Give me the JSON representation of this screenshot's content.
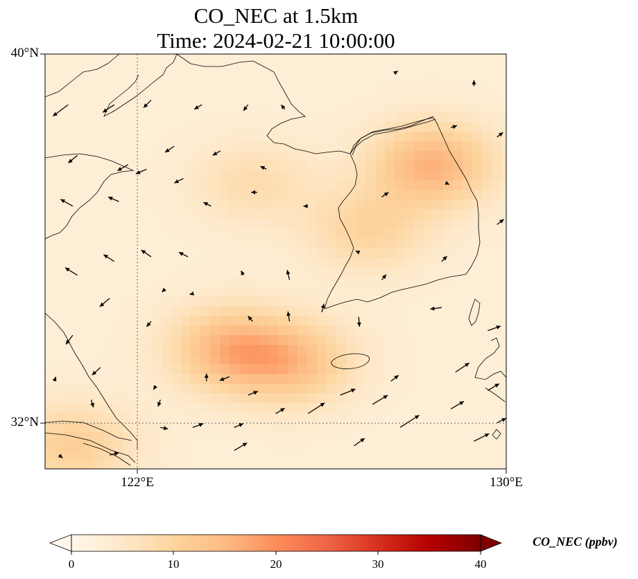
{
  "title": "CO_NEC at 1.5km",
  "time": "Time: 2024-02-21 10:00:00",
  "lat_labels": [
    "40°N",
    "32°N"
  ],
  "lon_labels": [
    "122°E",
    "130°E"
  ],
  "extent": {
    "lon_min": 120,
    "lon_max": 130,
    "lat_min": 31,
    "lat_max": 40
  },
  "gridlines": {
    "lons": [
      122
    ],
    "lats": [
      32
    ]
  },
  "colorbar": {
    "label": "CO_NEC (ppbv)",
    "ticks": [
      "0",
      "10",
      "20",
      "30",
      "40"
    ],
    "min": 0,
    "max": 40,
    "extend": "both",
    "colormap": "OrRd",
    "stops": [
      "#fff7ec",
      "#fee8c8",
      "#fdd49e",
      "#fdbb84",
      "#fc8d59",
      "#ef6548",
      "#d7301f",
      "#b30000",
      "#7f0000"
    ]
  },
  "field": {
    "background_ppbv": 3,
    "plumes": [
      {
        "name": "northern band",
        "lon": 124.5,
        "lat": 37.2,
        "ppbv": 8
      },
      {
        "name": "korea east",
        "lon": 128.4,
        "lat": 37.6,
        "ppbv": 16
      },
      {
        "name": "korea central",
        "lon": 127.0,
        "lat": 36.2,
        "ppbv": 10
      },
      {
        "name": "yellow sea south",
        "lon": 124.0,
        "lat": 33.6,
        "ppbv": 15
      },
      {
        "name": "near jeju",
        "lon": 125.4,
        "lat": 33.3,
        "ppbv": 13
      },
      {
        "name": "yangtze delta",
        "lon": 120.6,
        "lat": 31.5,
        "ppbv": 11
      }
    ]
  },
  "wind_arrows": [
    {
      "lon": 120.5,
      "lat": 38.9,
      "u": -2.0,
      "v": -1.5
    },
    {
      "lon": 121.5,
      "lat": 38.9,
      "u": -1.5,
      "v": -1.0
    },
    {
      "lon": 122.3,
      "lat": 39.0,
      "u": -1.0,
      "v": -1.0
    },
    {
      "lon": 123.4,
      "lat": 38.9,
      "u": -1.0,
      "v": -0.6
    },
    {
      "lon": 124.4,
      "lat": 38.9,
      "u": -0.6,
      "v": -0.8
    },
    {
      "lon": 125.2,
      "lat": 38.8,
      "u": -0.5,
      "v": 0.6
    },
    {
      "lon": 127.6,
      "lat": 39.6,
      "u": 0.3,
      "v": 0.2
    },
    {
      "lon": 129.3,
      "lat": 39.3,
      "u": 0.0,
      "v": 0.8
    },
    {
      "lon": 129.8,
      "lat": 38.2,
      "u": 0.8,
      "v": 0.6
    },
    {
      "lon": 120.7,
      "lat": 37.8,
      "u": -1.2,
      "v": -1.0
    },
    {
      "lon": 121.8,
      "lat": 37.6,
      "u": -1.4,
      "v": -0.8
    },
    {
      "lon": 122.8,
      "lat": 38.0,
      "u": -1.2,
      "v": -0.8
    },
    {
      "lon": 123.8,
      "lat": 37.9,
      "u": -1.0,
      "v": -0.6
    },
    {
      "lon": 124.8,
      "lat": 37.5,
      "u": -0.8,
      "v": 0.4
    },
    {
      "lon": 128.8,
      "lat": 38.4,
      "u": 0.8,
      "v": 0.3
    },
    {
      "lon": 120.6,
      "lat": 36.7,
      "u": -1.6,
      "v": 0.9
    },
    {
      "lon": 121.6,
      "lat": 36.8,
      "u": -1.4,
      "v": 0.6
    },
    {
      "lon": 122.2,
      "lat": 37.5,
      "u": -1.4,
      "v": -0.6
    },
    {
      "lon": 123.0,
      "lat": 37.3,
      "u": -1.2,
      "v": -0.6
    },
    {
      "lon": 123.6,
      "lat": 36.7,
      "u": -1.0,
      "v": 0.5
    },
    {
      "lon": 124.6,
      "lat": 37.0,
      "u": -0.8,
      "v": 0.0
    },
    {
      "lon": 125.7,
      "lat": 36.7,
      "u": -0.6,
      "v": 0.0
    },
    {
      "lon": 127.3,
      "lat": 36.9,
      "u": 0.9,
      "v": 0.6
    },
    {
      "lon": 128.7,
      "lat": 37.2,
      "u": 0.4,
      "v": -0.2
    },
    {
      "lon": 129.8,
      "lat": 36.3,
      "u": 0.9,
      "v": 0.7
    },
    {
      "lon": 120.7,
      "lat": 35.2,
      "u": -1.6,
      "v": 1.0
    },
    {
      "lon": 121.5,
      "lat": 35.5,
      "u": -1.4,
      "v": 0.9
    },
    {
      "lon": 122.3,
      "lat": 35.6,
      "u": -1.3,
      "v": 0.9
    },
    {
      "lon": 123.1,
      "lat": 35.6,
      "u": -1.2,
      "v": 0.6
    },
    {
      "lon": 124.3,
      "lat": 35.2,
      "u": -0.3,
      "v": 0.6
    },
    {
      "lon": 125.3,
      "lat": 35.1,
      "u": -0.3,
      "v": 1.3
    },
    {
      "lon": 126.8,
      "lat": 35.7,
      "u": -0.4,
      "v": 0.2
    },
    {
      "lon": 127.3,
      "lat": 35.1,
      "u": 0.6,
      "v": 0.7
    },
    {
      "lon": 128.6,
      "lat": 35.5,
      "u": 0.7,
      "v": 0.7
    },
    {
      "lon": 121.4,
      "lat": 34.7,
      "u": -1.3,
      "v": -1.1
    },
    {
      "lon": 122.3,
      "lat": 34.2,
      "u": -0.6,
      "v": -0.7
    },
    {
      "lon": 122.6,
      "lat": 34.9,
      "u": -0.4,
      "v": -0.4
    },
    {
      "lon": 123.2,
      "lat": 34.8,
      "u": -0.4,
      "v": -0.1
    },
    {
      "lon": 124.5,
      "lat": 34.2,
      "u": -0.6,
      "v": 0.7
    },
    {
      "lon": 125.3,
      "lat": 34.2,
      "u": -0.2,
      "v": 1.3
    },
    {
      "lon": 126.0,
      "lat": 34.4,
      "u": 0.3,
      "v": 1.1
    },
    {
      "lon": 126.8,
      "lat": 34.3,
      "u": 0.1,
      "v": -1.3
    },
    {
      "lon": 128.6,
      "lat": 34.5,
      "u": -1.5,
      "v": -0.2
    },
    {
      "lon": 129.6,
      "lat": 34.0,
      "u": 1.7,
      "v": 0.6
    },
    {
      "lon": 120.6,
      "lat": 33.9,
      "u": -0.9,
      "v": -1.2
    },
    {
      "lon": 121.2,
      "lat": 33.2,
      "u": -1.1,
      "v": -1.0
    },
    {
      "lon": 121.0,
      "lat": 32.5,
      "u": 0.3,
      "v": -1.0
    },
    {
      "lon": 120.2,
      "lat": 32.9,
      "u": 0.2,
      "v": 0.6
    },
    {
      "lon": 122.5,
      "lat": 32.5,
      "u": -0.3,
      "v": -0.9
    },
    {
      "lon": 122.4,
      "lat": 32.8,
      "u": -0.3,
      "v": -0.5
    },
    {
      "lon": 123.5,
      "lat": 32.9,
      "u": 0.0,
      "v": 1.0
    },
    {
      "lon": 124.4,
      "lat": 32.6,
      "u": 1.3,
      "v": 0.5
    },
    {
      "lon": 124.0,
      "lat": 33.0,
      "u": -1.3,
      "v": -0.5
    },
    {
      "lon": 126.4,
      "lat": 32.6,
      "u": 2.0,
      "v": 0.8
    },
    {
      "lon": 127.1,
      "lat": 32.4,
      "u": 2.0,
      "v": 1.2
    },
    {
      "lon": 127.5,
      "lat": 32.9,
      "u": 1.0,
      "v": 0.8
    },
    {
      "lon": 128.8,
      "lat": 32.3,
      "u": 1.7,
      "v": 1.0
    },
    {
      "lon": 128.9,
      "lat": 33.1,
      "u": 1.8,
      "v": 1.2
    },
    {
      "lon": 129.6,
      "lat": 32.7,
      "u": 1.5,
      "v": 0.9
    },
    {
      "lon": 122.5,
      "lat": 31.9,
      "u": 1.0,
      "v": -0.2
    },
    {
      "lon": 123.2,
      "lat": 31.9,
      "u": 1.4,
      "v": 0.5
    },
    {
      "lon": 124.1,
      "lat": 31.9,
      "u": 1.2,
      "v": 0.5
    },
    {
      "lon": 125.0,
      "lat": 32.2,
      "u": 1.2,
      "v": 0.7
    },
    {
      "lon": 125.7,
      "lat": 32.2,
      "u": 2.2,
      "v": 1.4
    },
    {
      "lon": 126.7,
      "lat": 31.5,
      "u": 1.4,
      "v": 1.0
    },
    {
      "lon": 127.7,
      "lat": 31.9,
      "u": 2.5,
      "v": 1.6
    },
    {
      "lon": 129.3,
      "lat": 31.6,
      "u": 2.0,
      "v": 1.0
    },
    {
      "lon": 129.8,
      "lat": 32.0,
      "u": 1.2,
      "v": 0.6
    },
    {
      "lon": 121.4,
      "lat": 31.3,
      "u": 1.2,
      "v": 0.3
    },
    {
      "lon": 124.1,
      "lat": 31.4,
      "u": 1.7,
      "v": 1.0
    },
    {
      "lon": 120.3,
      "lat": 31.3,
      "u": 0.5,
      "v": -0.4
    }
  ]
}
